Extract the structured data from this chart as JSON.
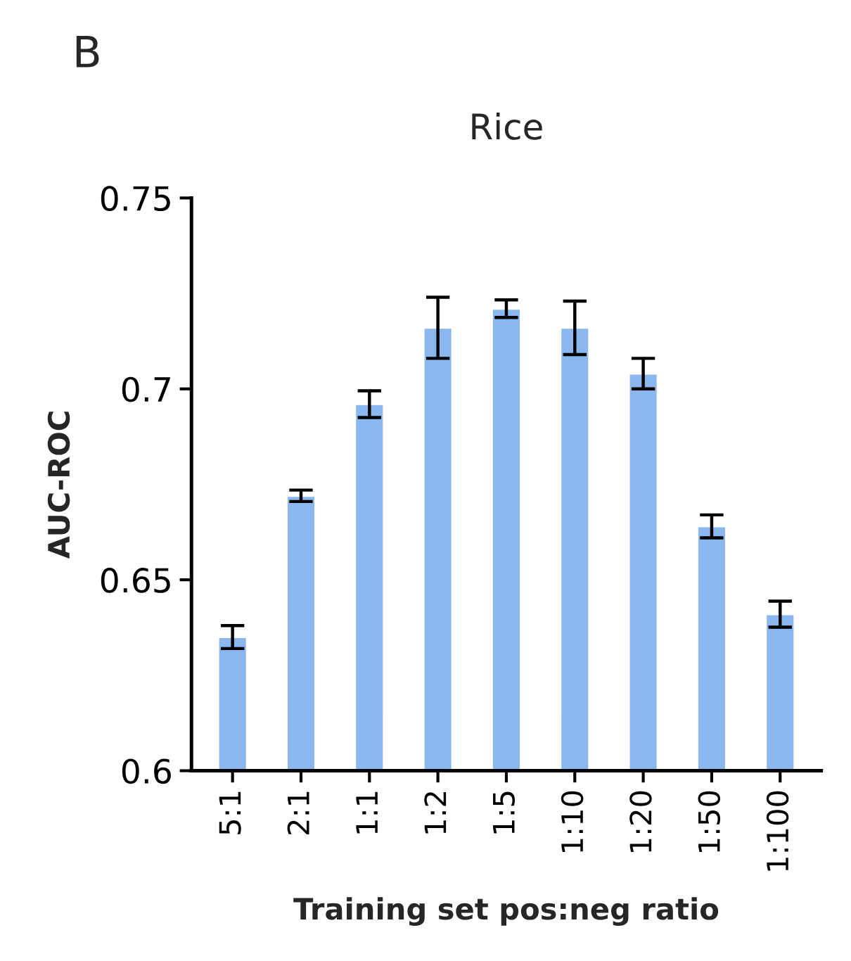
{
  "chart_data": {
    "type": "bar",
    "title": "Rice",
    "xlabel": "Training set pos:neg ratio",
    "ylabel": "AUC-ROC",
    "annotations": [
      "B"
    ],
    "categories": [
      "5:1",
      "2:1",
      "1:1",
      "1:2",
      "1:5",
      "1:10",
      "1:20",
      "1:50",
      "1:100"
    ],
    "values": [
      0.635,
      0.672,
      0.696,
      0.716,
      0.721,
      0.716,
      0.704,
      0.664,
      0.641
    ],
    "errors": [
      0.003,
      0.0015,
      0.0035,
      0.008,
      0.0023,
      0.007,
      0.004,
      0.003,
      0.0034
    ],
    "color": "#8ab8ee",
    "ylim": [
      0.6,
      0.75
    ],
    "yticks": [
      {
        "value": 0.6,
        "label": "0.6"
      },
      {
        "value": 0.65,
        "label": "0.65"
      },
      {
        "value": 0.7,
        "label": "0.7"
      },
      {
        "value": 0.75,
        "label": "0.75"
      }
    ],
    "grid": false,
    "legend": false
  }
}
